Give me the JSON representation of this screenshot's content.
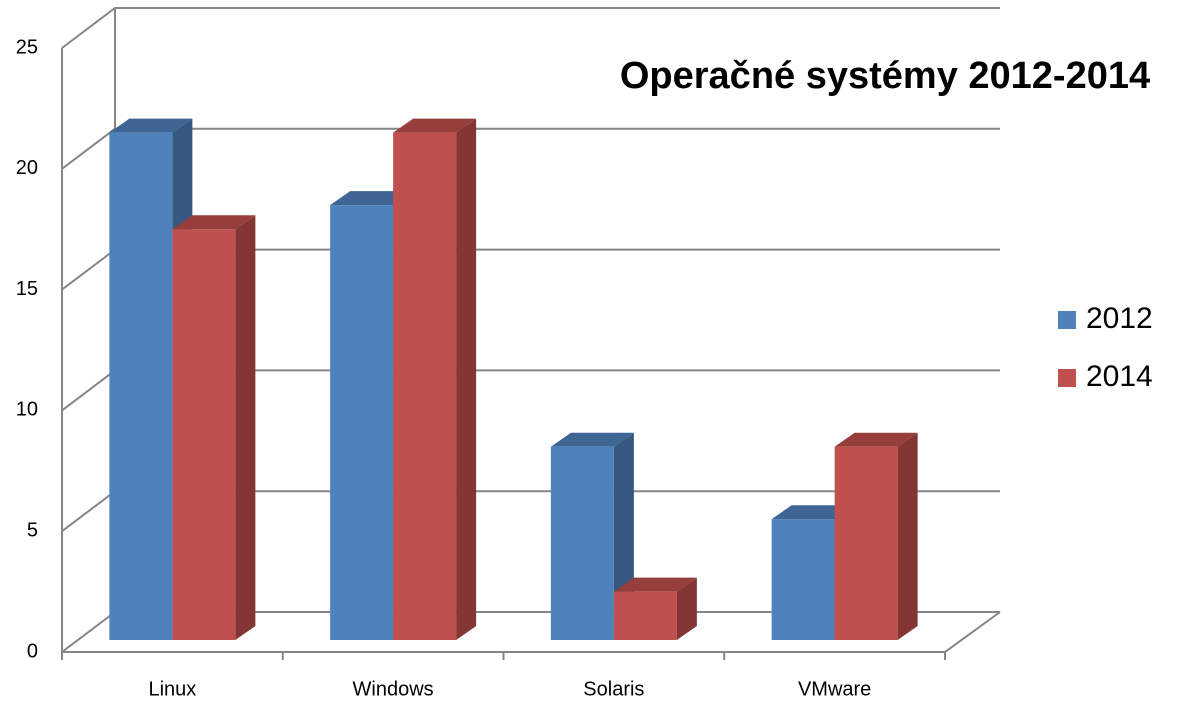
{
  "chart_data": {
    "type": "bar3d",
    "title": "Operačné systémy 2012-2014",
    "categories": [
      "Linux",
      "Windows",
      "Solaris",
      "VMware"
    ],
    "series": [
      {
        "name": "2012",
        "color": "#4f81bd",
        "values": [
          21,
          18,
          8,
          5
        ]
      },
      {
        "name": "2014",
        "color": "#c0504d",
        "values": [
          17,
          21,
          2,
          8
        ]
      }
    ],
    "ylim": [
      0,
      25
    ],
    "yticks": [
      0,
      5,
      10,
      15,
      20,
      25
    ],
    "grid": true,
    "legend": "right"
  }
}
